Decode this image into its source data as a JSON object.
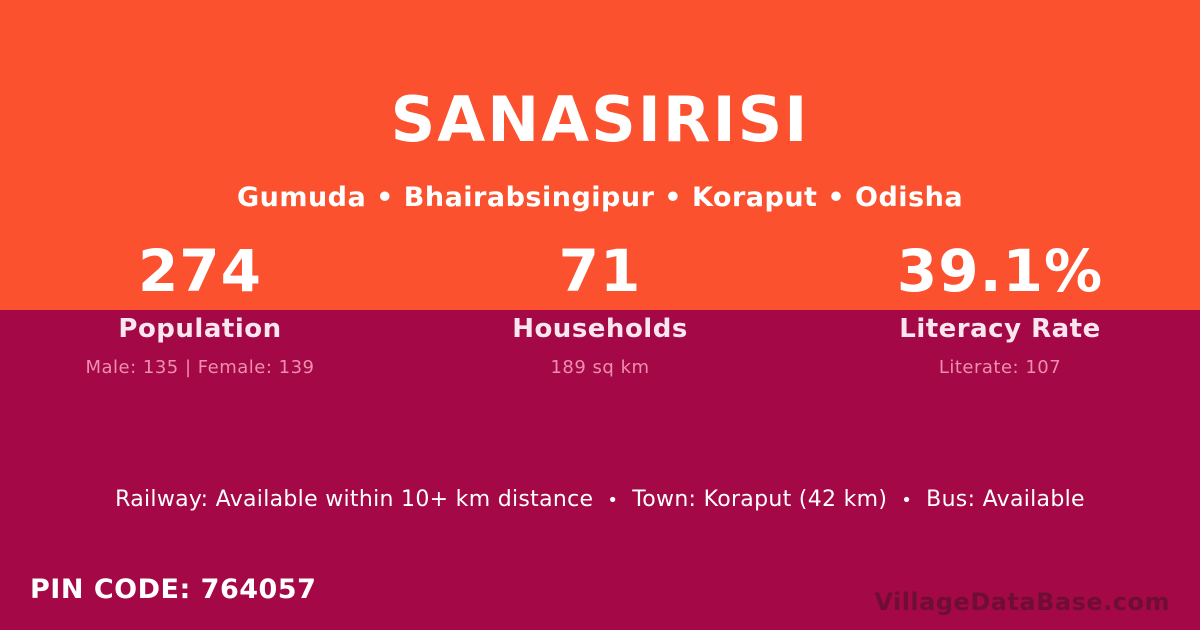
{
  "colors": {
    "orange_band": "#FB512E",
    "crimson_band": "#A40846",
    "primary_text": "#FFFFFF",
    "stat_label_pink": "#F9E6EE",
    "stat_detail_pink": "#EF8FAE",
    "watermark_gray": "rgba(35,25,35,0.42)"
  },
  "header": {
    "title": "SANASIRISI",
    "location_breadcrumb": "Gumuda • Bhairabsingipur • Koraput • Odisha"
  },
  "stats": [
    {
      "value": "274",
      "label": "Population",
      "detail": "Male: 135 | Female: 139"
    },
    {
      "value": "71",
      "label": "Households",
      "detail": "189 sq km"
    },
    {
      "value": "39.1%",
      "label": "Literacy Rate",
      "detail": "Literate: 107"
    }
  ],
  "transport": {
    "separator": "•",
    "items": [
      "Railway: Available within 10+ km distance",
      "Town: Koraput (42 km)",
      "Bus: Available"
    ]
  },
  "footer": {
    "pin_code": "PIN CODE: 764057",
    "watermark": "VillageDataBase.com"
  }
}
